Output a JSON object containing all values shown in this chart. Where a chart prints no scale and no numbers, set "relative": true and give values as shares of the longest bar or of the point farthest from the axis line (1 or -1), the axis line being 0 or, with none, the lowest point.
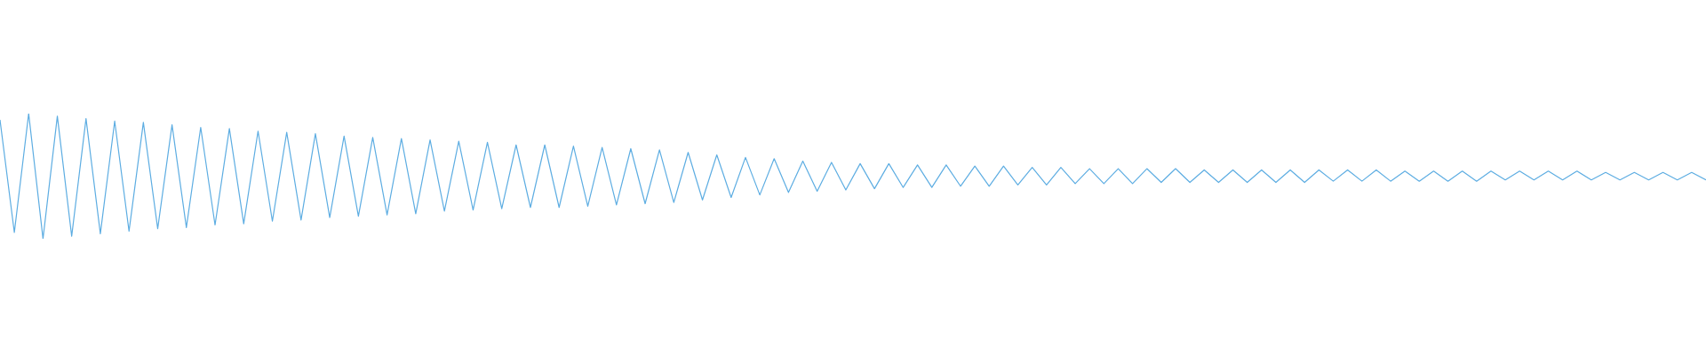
{
  "chart_data": {
    "type": "line",
    "relative": true,
    "categories": [
      null,
      null,
      null,
      null,
      null,
      null,
      null,
      null,
      null,
      null,
      null,
      null,
      null,
      null,
      null,
      null,
      null,
      null,
      null,
      null,
      null,
      null,
      null,
      null,
      null,
      null,
      null,
      null,
      null,
      null,
      null,
      null,
      null,
      null,
      null,
      null,
      null,
      null,
      null,
      null,
      null,
      null,
      null,
      null,
      null,
      null,
      null,
      null,
      null,
      null,
      null,
      null,
      null,
      null,
      null,
      null,
      null,
      null,
      null,
      null,
      null,
      null,
      null,
      null,
      null,
      null,
      null,
      null,
      null,
      null,
      null,
      null,
      null,
      null,
      null,
      null,
      null,
      null,
      null,
      null,
      null,
      null,
      null,
      null,
      null,
      null,
      null,
      null,
      null,
      null,
      null,
      null,
      null,
      null,
      null,
      null,
      null,
      null,
      null,
      null,
      null,
      null,
      null,
      null,
      null,
      null,
      null,
      null,
      null,
      null,
      null,
      null,
      null,
      null,
      null,
      null,
      null,
      null,
      null,
      null
    ],
    "series": [
      {
        "color": "#5dade2",
        "values": [
          0.95,
          0.05,
          1,
          0,
          0.98,
          0.02,
          0.96,
          0.04,
          0.94,
          0.06,
          0.93,
          0.08,
          0.91,
          0.09,
          0.89,
          0.11,
          0.88,
          0.12,
          0.86,
          0.14,
          0.85,
          0.15,
          0.84,
          0.17,
          0.82,
          0.18,
          0.81,
          0.19,
          0.8,
          0.2,
          0.79,
          0.22,
          0.78,
          0.23,
          0.77,
          0.24,
          0.75,
          0.25,
          0.75,
          0.25,
          0.74,
          0.26,
          0.73,
          0.27,
          0.72,
          0.28,
          0.71,
          0.29,
          0.69,
          0.31,
          0.67,
          0.33,
          0.65,
          0.35,
          0.64,
          0.37,
          0.62,
          0.38,
          0.61,
          0.39,
          0.6,
          0.4,
          0.6,
          0.41,
          0.59,
          0.41,
          0.59,
          0.42,
          0.58,
          0.42,
          0.58,
          0.43,
          0.57,
          0.43,
          0.57,
          0.44,
          0.56,
          0.44,
          0.56,
          0.44,
          0.56,
          0.45,
          0.56,
          0.45,
          0.55,
          0.45,
          0.55,
          0.45,
          0.55,
          0.45,
          0.55,
          0.45,
          0.55,
          0.46,
          0.55,
          0.46,
          0.55,
          0.46,
          0.54,
          0.46,
          0.54,
          0.46,
          0.54,
          0.46,
          0.54,
          0.47,
          0.54,
          0.47,
          0.54,
          0.47,
          0.54,
          0.47,
          0.53,
          0.47,
          0.53,
          0.47,
          0.53,
          0.47,
          0.53,
          0.47
        ]
      }
    ]
  }
}
